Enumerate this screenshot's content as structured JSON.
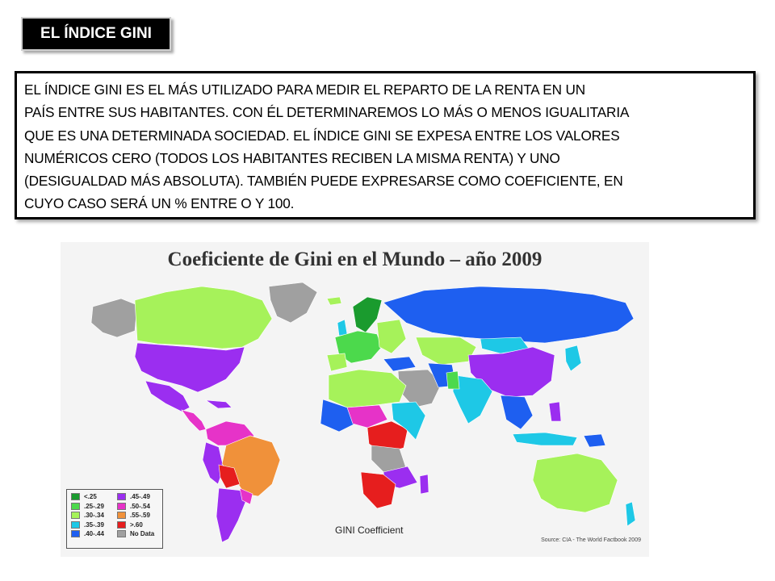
{
  "slide": {
    "title": "EL ÍNDICE GINI",
    "text_lines": [
      "EL ÍNDICE GINI ES EL MÁS UTILIZADO PARA MEDIR EL REPARTO DE LA RENTA EN UN",
      "PAÍS ENTRE SUS HABITANTES. CON ÉL DETERMINAREMOS LO MÁS O MENOS IGUALITARIA",
      "QUE ES UNA DETERMINADA SOCIEDAD. EL ÍNDICE GINI SE EXPESA ENTRE LOS VALORES",
      "NUMÉRICOS CERO (TODOS LOS HABITANTES RECIBEN LA MISMA RENTA)  Y UNO",
      "(DESIGUALDAD MÁS ABSOLUTA). TAMBIÉN PUEDE EXPRESARSE COMO COEFICIENTE, EN",
      "CUYO CASO SERÁ UN % ENTRE O Y 100."
    ]
  },
  "map": {
    "title": "Coeficiente de Gini en el Mundo – año 2009",
    "legend_title": "GINI Coefficient",
    "source": "Source: CIA - The World Factbook 2009",
    "legend": [
      {
        "label": "<.25",
        "color": "#1a9b2e"
      },
      {
        "label": ".25-.29",
        "color": "#4cd94c"
      },
      {
        "label": ".30-.34",
        "color": "#a6f25a"
      },
      {
        "label": ".35-.39",
        "color": "#1ec8e6"
      },
      {
        "label": ".40-.44",
        "color": "#1e5ff0"
      },
      {
        "label": ".45-.49",
        "color": "#9b2ef0"
      },
      {
        "label": ".50-.54",
        "color": "#e633c8"
      },
      {
        "label": ".55-.59",
        "color": "#f0913a"
      },
      {
        "label": ">.60",
        "color": "#e61e1e"
      },
      {
        "label": "No Data",
        "color": "#a0a0a0"
      }
    ]
  }
}
